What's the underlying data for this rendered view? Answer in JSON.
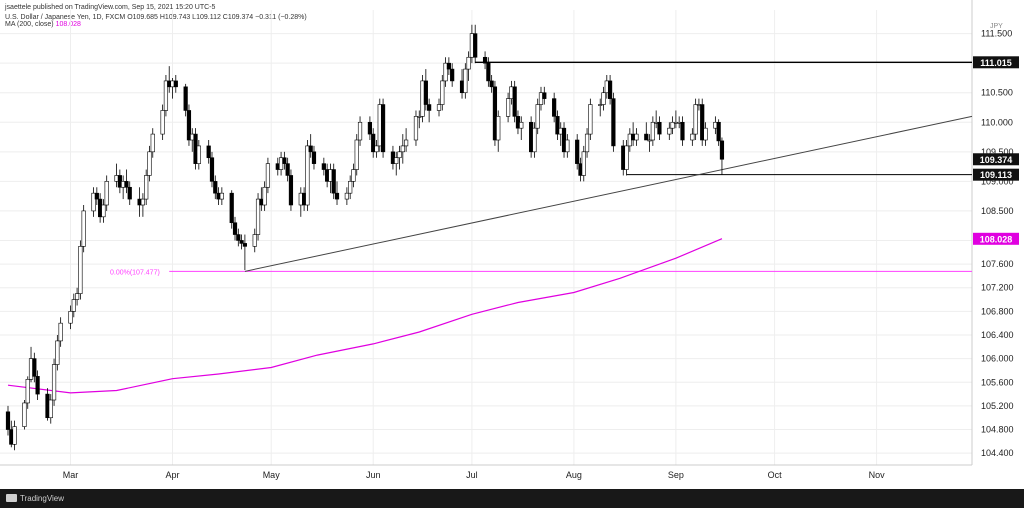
{
  "header": {
    "published": "jsaettele published on TradingView.com, Sep 15, 2021 15:20 UTC-5",
    "symbol": "U.S. Dollar / Japanese Yen, 1D, FXCM",
    "ohlc": "O109.685 H109.743 L109.112 C109.374 −0.311 (−0.28%)",
    "ma_label": "MA (200, close)",
    "ma_value": "108.028"
  },
  "footer": {
    "brand": "TradingView"
  },
  "colors": {
    "candle": "#000000",
    "ma": "#e000e0",
    "fib": "#ff40ff",
    "grid": "#eeeeee",
    "axis_text": "#222222"
  },
  "chart_data": {
    "type": "candlestick",
    "x_range": [
      "2021-02-10",
      "2021-11-30"
    ],
    "y_range": [
      104.2,
      111.9
    ],
    "x_ticks": [
      {
        "label": "Mar",
        "date": "2021-03-01"
      },
      {
        "label": "Apr",
        "date": "2021-04-01"
      },
      {
        "label": "May",
        "date": "2021-05-01"
      },
      {
        "label": "Jun",
        "date": "2021-06-01"
      },
      {
        "label": "Jul",
        "date": "2021-07-01"
      },
      {
        "label": "Aug",
        "date": "2021-08-01"
      },
      {
        "label": "Sep",
        "date": "2021-09-01"
      },
      {
        "label": "Oct",
        "date": "2021-10-01"
      },
      {
        "label": "Nov",
        "date": "2021-11-01"
      }
    ],
    "y_ticks": [
      "111.500",
      "111.000",
      "110.500",
      "110.000",
      "109.500",
      "109.000",
      "108.500",
      "108.000",
      "107.600",
      "107.200",
      "106.800",
      "106.400",
      "106.000",
      "105.600",
      "105.200",
      "104.800",
      "104.400"
    ],
    "price_labels": [
      {
        "value": 111.015,
        "text": "111.015",
        "style": "dark"
      },
      {
        "value": 109.374,
        "text": "109.374",
        "style": "dark"
      },
      {
        "value": 109.113,
        "text": "109.113",
        "style": "dark"
      },
      {
        "value": 108.028,
        "text": "108.028",
        "style": "magenta"
      }
    ],
    "hlines": [
      {
        "value": 111.015,
        "from": "2021-07-02",
        "to": "right"
      },
      {
        "value": 109.113,
        "from": "2021-08-17",
        "to": "right"
      },
      {
        "value": 107.477,
        "from": "2021-03-31",
        "to": "right",
        "color": "fib"
      }
    ],
    "fib_label": {
      "text": "0.00%(107.477)",
      "value": 107.477,
      "date": "2021-03-13"
    },
    "trendline": {
      "points": [
        [
          "2021-04-23",
          107.477
        ],
        [
          "2021-11-30",
          110.1
        ]
      ]
    },
    "ma_series": [
      [
        "2021-02-10",
        105.55
      ],
      [
        "2021-03-01",
        105.42
      ],
      [
        "2021-03-15",
        105.46
      ],
      [
        "2021-04-01",
        105.66
      ],
      [
        "2021-04-15",
        105.74
      ],
      [
        "2021-05-01",
        105.85
      ],
      [
        "2021-05-15",
        106.06
      ],
      [
        "2021-06-01",
        106.25
      ],
      [
        "2021-06-15",
        106.45
      ],
      [
        "2021-07-01",
        106.75
      ],
      [
        "2021-07-15",
        106.95
      ],
      [
        "2021-08-01",
        107.12
      ],
      [
        "2021-08-15",
        107.36
      ],
      [
        "2021-09-01",
        107.7
      ],
      [
        "2021-09-15",
        108.03
      ]
    ],
    "candles": [
      [
        "2021-02-10",
        105.1,
        105.2,
        104.7,
        104.8
      ],
      [
        "2021-02-11",
        104.8,
        104.95,
        104.5,
        104.55
      ],
      [
        "2021-02-12",
        104.55,
        104.95,
        104.45,
        104.85
      ],
      [
        "2021-02-15",
        104.85,
        105.3,
        104.8,
        105.25
      ],
      [
        "2021-02-16",
        105.25,
        105.7,
        105.15,
        105.65
      ],
      [
        "2021-02-17",
        105.65,
        106.2,
        105.6,
        106.0
      ],
      [
        "2021-02-18",
        106.0,
        106.1,
        105.6,
        105.7
      ],
      [
        "2021-02-19",
        105.7,
        105.8,
        105.3,
        105.4
      ],
      [
        "2021-02-22",
        105.4,
        105.5,
        104.95,
        105.0
      ],
      [
        "2021-02-23",
        105.0,
        105.4,
        104.9,
        105.3
      ],
      [
        "2021-02-24",
        105.3,
        106.0,
        105.2,
        105.9
      ],
      [
        "2021-02-25",
        105.9,
        106.4,
        105.8,
        106.3
      ],
      [
        "2021-02-26",
        106.3,
        106.7,
        106.2,
        106.6
      ],
      [
        "2021-03-01",
        106.6,
        106.9,
        106.5,
        106.8
      ],
      [
        "2021-03-02",
        106.8,
        107.1,
        106.7,
        107.0
      ],
      [
        "2021-03-03",
        107.0,
        107.2,
        106.9,
        107.1
      ],
      [
        "2021-03-04",
        107.1,
        108.0,
        107.0,
        107.9
      ],
      [
        "2021-03-05",
        107.9,
        108.6,
        107.8,
        108.5
      ],
      [
        "2021-03-08",
        108.5,
        108.9,
        108.4,
        108.8
      ],
      [
        "2021-03-09",
        108.8,
        108.9,
        108.6,
        108.7
      ],
      [
        "2021-03-10",
        108.7,
        108.8,
        108.3,
        108.4
      ],
      [
        "2021-03-11",
        108.4,
        108.7,
        108.3,
        108.6
      ],
      [
        "2021-03-12",
        108.6,
        109.1,
        108.5,
        109.0
      ],
      [
        "2021-03-15",
        109.0,
        109.3,
        108.9,
        109.1
      ],
      [
        "2021-03-16",
        109.1,
        109.2,
        108.8,
        108.9
      ],
      [
        "2021-03-17",
        108.9,
        109.1,
        108.7,
        109.0
      ],
      [
        "2021-03-18",
        109.0,
        109.2,
        108.8,
        108.9
      ],
      [
        "2021-03-19",
        108.9,
        109.0,
        108.6,
        108.7
      ],
      [
        "2021-03-22",
        108.7,
        108.9,
        108.4,
        108.6
      ],
      [
        "2021-03-23",
        108.6,
        108.8,
        108.4,
        108.7
      ],
      [
        "2021-03-24",
        108.7,
        109.2,
        108.6,
        109.1
      ],
      [
        "2021-03-25",
        109.1,
        109.6,
        109.0,
        109.5
      ],
      [
        "2021-03-26",
        109.5,
        109.9,
        109.4,
        109.8
      ],
      [
        "2021-03-29",
        109.8,
        110.3,
        109.7,
        110.2
      ],
      [
        "2021-03-30",
        110.2,
        110.8,
        110.1,
        110.7
      ],
      [
        "2021-03-31",
        110.7,
        110.95,
        110.5,
        110.6
      ],
      [
        "2021-04-01",
        110.6,
        110.75,
        110.4,
        110.7
      ],
      [
        "2021-04-02",
        110.7,
        110.8,
        110.5,
        110.6
      ],
      [
        "2021-04-05",
        110.6,
        110.65,
        110.1,
        110.2
      ],
      [
        "2021-04-06",
        110.2,
        110.3,
        109.6,
        109.7
      ],
      [
        "2021-04-07",
        109.7,
        109.9,
        109.5,
        109.8
      ],
      [
        "2021-04-08",
        109.8,
        109.9,
        109.2,
        109.3
      ],
      [
        "2021-04-09",
        109.3,
        109.7,
        109.2,
        109.6
      ],
      [
        "2021-04-12",
        109.6,
        109.7,
        109.3,
        109.4
      ],
      [
        "2021-04-13",
        109.4,
        109.5,
        108.9,
        109.0
      ],
      [
        "2021-04-14",
        109.0,
        109.1,
        108.7,
        108.8
      ],
      [
        "2021-04-15",
        108.8,
        108.9,
        108.6,
        108.7
      ],
      [
        "2021-04-16",
        108.7,
        108.9,
        108.6,
        108.8
      ],
      [
        "2021-04-19",
        108.8,
        108.85,
        108.2,
        108.3
      ],
      [
        "2021-04-20",
        108.3,
        108.4,
        108.0,
        108.1
      ],
      [
        "2021-04-21",
        108.1,
        108.2,
        107.9,
        108.0
      ],
      [
        "2021-04-22",
        108.0,
        108.1,
        107.85,
        107.95
      ],
      [
        "2021-04-23",
        107.95,
        108.1,
        107.5,
        107.9
      ],
      [
        "2021-04-26",
        107.9,
        108.2,
        107.8,
        108.1
      ],
      [
        "2021-04-27",
        108.1,
        108.8,
        108.0,
        108.7
      ],
      [
        "2021-04-28",
        108.7,
        108.9,
        108.5,
        108.6
      ],
      [
        "2021-04-29",
        108.6,
        109.0,
        108.5,
        108.9
      ],
      [
        "2021-04-30",
        108.9,
        109.4,
        108.8,
        109.3
      ],
      [
        "2021-05-03",
        109.3,
        109.4,
        109.1,
        109.2
      ],
      [
        "2021-05-04",
        109.2,
        109.5,
        109.1,
        109.4
      ],
      [
        "2021-05-05",
        109.4,
        109.5,
        109.2,
        109.3
      ],
      [
        "2021-05-06",
        109.3,
        109.4,
        109.0,
        109.1
      ],
      [
        "2021-05-07",
        109.1,
        109.2,
        108.5,
        108.6
      ],
      [
        "2021-05-10",
        108.6,
        108.9,
        108.4,
        108.8
      ],
      [
        "2021-05-11",
        108.8,
        108.9,
        108.5,
        108.6
      ],
      [
        "2021-05-12",
        108.6,
        109.7,
        108.5,
        109.6
      ],
      [
        "2021-05-13",
        109.6,
        109.8,
        109.4,
        109.5
      ],
      [
        "2021-05-14",
        109.5,
        109.6,
        109.2,
        109.3
      ],
      [
        "2021-05-17",
        109.3,
        109.4,
        109.1,
        109.2
      ],
      [
        "2021-05-18",
        109.2,
        109.3,
        108.9,
        109.0
      ],
      [
        "2021-05-19",
        109.0,
        109.3,
        108.8,
        109.2
      ],
      [
        "2021-05-20",
        109.2,
        109.3,
        108.7,
        108.8
      ],
      [
        "2021-05-21",
        108.8,
        109.0,
        108.6,
        108.7
      ],
      [
        "2021-05-24",
        108.7,
        108.9,
        108.6,
        108.8
      ],
      [
        "2021-05-25",
        108.8,
        109.1,
        108.7,
        109.0
      ],
      [
        "2021-05-26",
        109.0,
        109.3,
        108.9,
        109.2
      ],
      [
        "2021-05-27",
        109.2,
        109.8,
        109.1,
        109.7
      ],
      [
        "2021-05-28",
        109.7,
        110.1,
        109.6,
        110.0
      ],
      [
        "2021-05-31",
        110.0,
        110.1,
        109.7,
        109.8
      ],
      [
        "2021-06-01",
        109.8,
        109.9,
        109.4,
        109.5
      ],
      [
        "2021-06-02",
        109.5,
        109.7,
        109.4,
        109.6
      ],
      [
        "2021-06-03",
        109.6,
        110.4,
        109.5,
        110.3
      ],
      [
        "2021-06-04",
        110.3,
        110.4,
        109.4,
        109.5
      ],
      [
        "2021-06-07",
        109.5,
        109.6,
        109.2,
        109.3
      ],
      [
        "2021-06-08",
        109.3,
        109.5,
        109.1,
        109.4
      ],
      [
        "2021-06-09",
        109.4,
        109.6,
        109.2,
        109.5
      ],
      [
        "2021-06-10",
        109.5,
        109.8,
        109.3,
        109.6
      ],
      [
        "2021-06-11",
        109.6,
        109.9,
        109.5,
        109.7
      ],
      [
        "2021-06-14",
        109.7,
        110.2,
        109.6,
        110.1
      ],
      [
        "2021-06-15",
        110.1,
        110.2,
        109.9,
        110.1
      ],
      [
        "2021-06-16",
        110.1,
        110.8,
        110.0,
        110.7
      ],
      [
        "2021-06-17",
        110.7,
        110.9,
        110.2,
        110.3
      ],
      [
        "2021-06-18",
        110.3,
        110.4,
        110.0,
        110.2
      ],
      [
        "2021-06-21",
        110.2,
        110.4,
        110.1,
        110.3
      ],
      [
        "2021-06-22",
        110.3,
        110.8,
        110.2,
        110.7
      ],
      [
        "2021-06-23",
        110.7,
        111.1,
        110.6,
        111.0
      ],
      [
        "2021-06-24",
        111.0,
        111.1,
        110.8,
        110.9
      ],
      [
        "2021-06-25",
        110.9,
        111.0,
        110.6,
        110.7
      ],
      [
        "2021-06-28",
        110.7,
        110.9,
        110.4,
        110.5
      ],
      [
        "2021-06-29",
        110.5,
        111.0,
        110.4,
        110.9
      ],
      [
        "2021-06-30",
        110.9,
        111.2,
        110.7,
        111.1
      ],
      [
        "2021-07-01",
        111.1,
        111.65,
        111.0,
        111.5
      ],
      [
        "2021-07-02",
        111.5,
        111.65,
        111.0,
        111.1
      ],
      [
        "2021-07-05",
        111.1,
        111.2,
        110.9,
        111.0
      ],
      [
        "2021-07-06",
        111.0,
        111.1,
        110.6,
        110.7
      ],
      [
        "2021-07-07",
        110.7,
        110.8,
        110.5,
        110.6
      ],
      [
        "2021-07-08",
        110.6,
        110.7,
        109.6,
        109.7
      ],
      [
        "2021-07-09",
        109.7,
        110.2,
        109.5,
        110.1
      ],
      [
        "2021-07-12",
        110.1,
        110.5,
        110.0,
        110.4
      ],
      [
        "2021-07-13",
        110.4,
        110.7,
        110.3,
        110.6
      ],
      [
        "2021-07-14",
        110.6,
        110.7,
        110.0,
        110.1
      ],
      [
        "2021-07-15",
        110.1,
        110.2,
        109.8,
        109.9
      ],
      [
        "2021-07-16",
        109.9,
        110.1,
        109.7,
        110.0
      ],
      [
        "2021-07-19",
        110.0,
        110.1,
        109.4,
        109.5
      ],
      [
        "2021-07-20",
        109.5,
        110.0,
        109.4,
        109.9
      ],
      [
        "2021-07-21",
        109.9,
        110.4,
        109.8,
        110.3
      ],
      [
        "2021-07-22",
        110.3,
        110.6,
        110.2,
        110.5
      ],
      [
        "2021-07-23",
        110.5,
        110.6,
        110.3,
        110.4
      ],
      [
        "2021-07-26",
        110.4,
        110.5,
        110.0,
        110.1
      ],
      [
        "2021-07-27",
        110.1,
        110.2,
        109.7,
        109.8
      ],
      [
        "2021-07-28",
        109.8,
        110.0,
        109.6,
        109.9
      ],
      [
        "2021-07-29",
        109.9,
        110.0,
        109.4,
        109.5
      ],
      [
        "2021-07-30",
        109.5,
        109.8,
        109.4,
        109.7
      ],
      [
        "2021-08-02",
        109.7,
        109.8,
        109.2,
        109.3
      ],
      [
        "2021-08-03",
        109.3,
        109.4,
        109.0,
        109.1
      ],
      [
        "2021-08-04",
        109.1,
        109.6,
        109.0,
        109.5
      ],
      [
        "2021-08-05",
        109.5,
        109.9,
        109.4,
        109.8
      ],
      [
        "2021-08-06",
        109.8,
        110.4,
        109.7,
        110.3
      ],
      [
        "2021-08-09",
        110.3,
        110.4,
        110.1,
        110.3
      ],
      [
        "2021-08-10",
        110.3,
        110.6,
        110.2,
        110.5
      ],
      [
        "2021-08-11",
        110.5,
        110.8,
        110.4,
        110.7
      ],
      [
        "2021-08-12",
        110.7,
        110.8,
        110.3,
        110.4
      ],
      [
        "2021-08-13",
        110.4,
        110.5,
        109.5,
        109.6
      ],
      [
        "2021-08-16",
        109.6,
        109.7,
        109.1,
        109.2
      ],
      [
        "2021-08-17",
        109.2,
        109.7,
        109.1,
        109.6
      ],
      [
        "2021-08-18",
        109.6,
        109.9,
        109.5,
        109.8
      ],
      [
        "2021-08-19",
        109.8,
        110.0,
        109.6,
        109.7
      ],
      [
        "2021-08-20",
        109.7,
        109.9,
        109.6,
        109.8
      ],
      [
        "2021-08-23",
        109.8,
        110.0,
        109.7,
        109.7
      ],
      [
        "2021-08-24",
        109.7,
        109.8,
        109.5,
        109.7
      ],
      [
        "2021-08-25",
        109.7,
        110.1,
        109.6,
        110.0
      ],
      [
        "2021-08-26",
        110.0,
        110.2,
        109.9,
        110.0
      ],
      [
        "2021-08-27",
        110.0,
        110.1,
        109.7,
        109.8
      ],
      [
        "2021-08-30",
        109.8,
        110.0,
        109.7,
        109.9
      ],
      [
        "2021-08-31",
        109.9,
        110.1,
        109.8,
        110.0
      ],
      [
        "2021-09-01",
        110.0,
        110.2,
        109.9,
        110.0
      ],
      [
        "2021-09-02",
        110.0,
        110.1,
        109.9,
        110.0
      ],
      [
        "2021-09-03",
        110.0,
        110.1,
        109.6,
        109.7
      ],
      [
        "2021-09-06",
        109.7,
        109.9,
        109.6,
        109.8
      ],
      [
        "2021-09-07",
        109.8,
        110.4,
        109.7,
        110.3
      ],
      [
        "2021-09-08",
        110.3,
        110.4,
        110.2,
        110.3
      ],
      [
        "2021-09-09",
        110.3,
        110.4,
        109.6,
        109.7
      ],
      [
        "2021-09-10",
        109.7,
        110.0,
        109.6,
        109.9
      ],
      [
        "2021-09-13",
        109.9,
        110.1,
        109.8,
        110.0
      ],
      [
        "2021-09-14",
        110.0,
        110.05,
        109.6,
        109.685
      ],
      [
        "2021-09-15",
        109.685,
        109.743,
        109.112,
        109.374
      ]
    ]
  }
}
